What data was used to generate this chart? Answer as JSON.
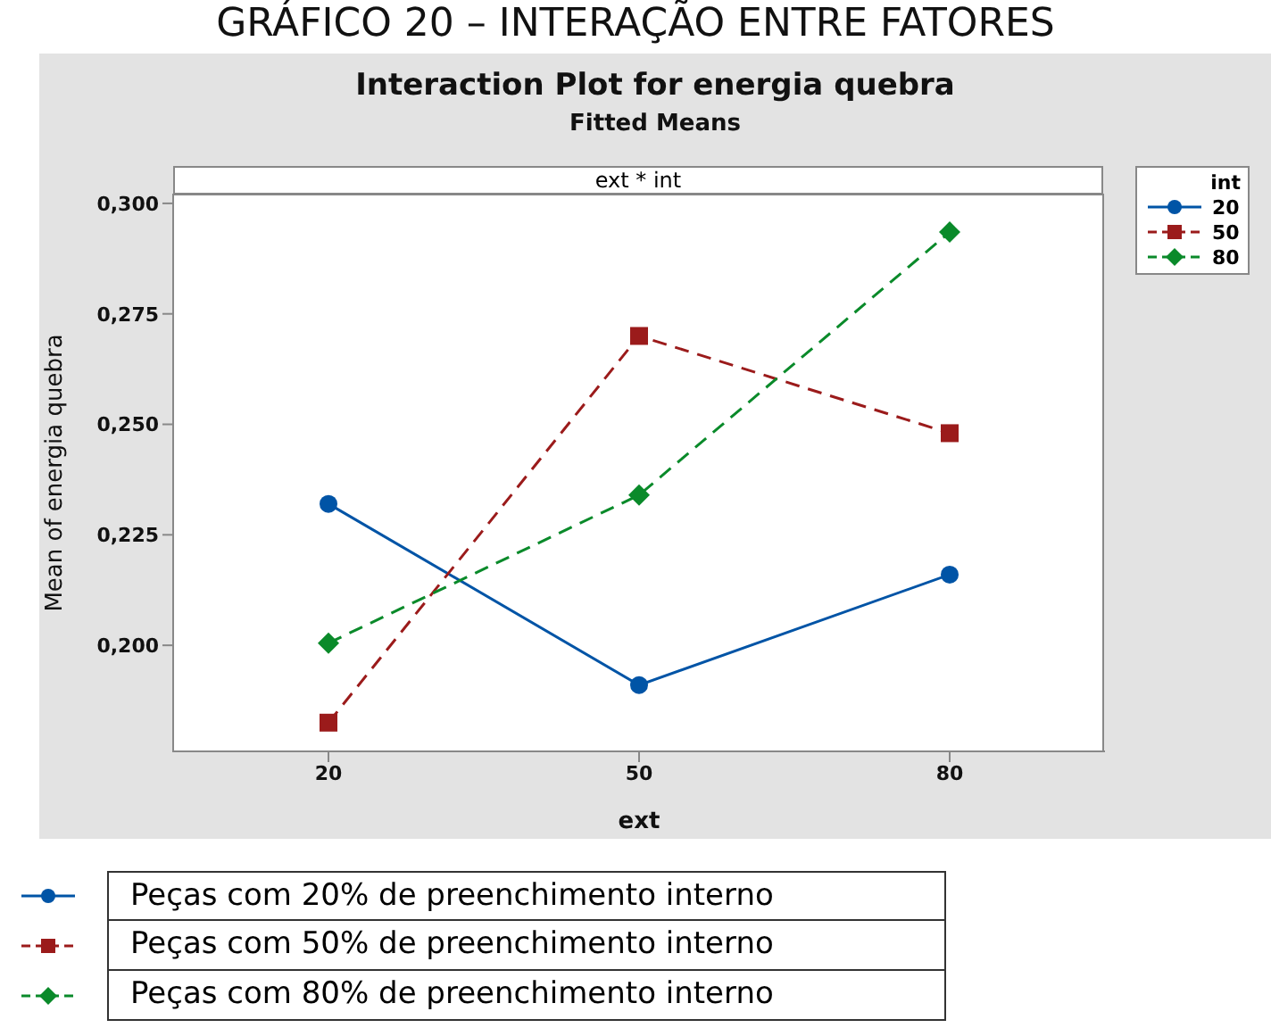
{
  "chart_data": {
    "type": "line",
    "title": "Interaction Plot for energia quebra",
    "subtitle": "Fitted Means",
    "xlabel": "ext",
    "ylabel": "Mean of energia quebra",
    "legend_title": "int",
    "legend": "top right",
    "annotations": [
      "GRÁFICO 20 – INTERAÇÃO ENTRE FATORES",
      "ext * int",
      "Peças com 20% de preenchimento interno",
      "Peças com 50% de preenchimento interno",
      "Peças com 80% de preenchimento interno"
    ],
    "x": [
      20,
      50,
      80
    ],
    "xlim": [
      5,
      95
    ],
    "xticks": [
      20,
      50,
      80
    ],
    "ylim": [
      0.176,
      0.302
    ],
    "yticks": [
      {
        "value": 0.2,
        "label": "0,200"
      },
      {
        "value": 0.225,
        "label": "0,225"
      },
      {
        "value": 0.25,
        "label": "0,250"
      },
      {
        "value": 0.275,
        "label": "0,275"
      },
      {
        "value": 0.3,
        "label": "0,300"
      }
    ],
    "series": [
      {
        "name": "20",
        "color": "#0054a6",
        "marker": "circle",
        "line_style": "solid",
        "values": [
          0.232,
          0.191,
          0.216
        ]
      },
      {
        "name": "50",
        "color": "#9b1b1b",
        "marker": "square",
        "line_style": "dashed",
        "values": [
          0.1825,
          0.27,
          0.248
        ]
      },
      {
        "name": "80",
        "color": "#0a8a2a",
        "marker": "diamond",
        "line_style": "dashed",
        "values": [
          0.2005,
          0.234,
          0.2935
        ]
      }
    ]
  }
}
